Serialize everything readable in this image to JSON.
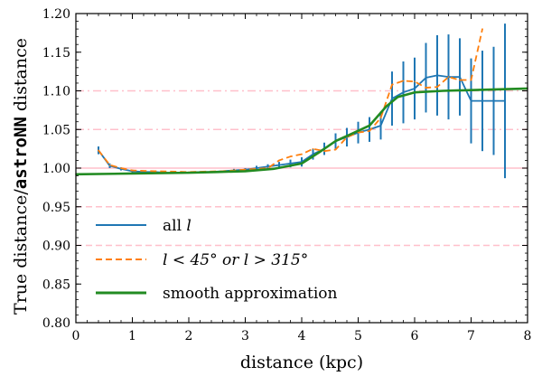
{
  "chart_data": {
    "type": "line",
    "xlabel": "distance (kpc)",
    "ylabel_parts": [
      "True distance/",
      "astroNN",
      " distance"
    ],
    "xlim": [
      0,
      8
    ],
    "ylim": [
      0.8,
      1.2
    ],
    "x_ticks": [
      "0",
      "1",
      "2",
      "3",
      "4",
      "5",
      "6",
      "7",
      "8"
    ],
    "y_ticks": [
      "0.80",
      "0.85",
      "0.90",
      "0.95",
      "1.00",
      "1.05",
      "1.10",
      "1.15",
      "1.20"
    ],
    "reference_lines": [
      {
        "y": 0.9,
        "style": "dashed",
        "color": "#ffc0cb"
      },
      {
        "y": 0.95,
        "style": "dashed",
        "color": "#ffc0cb"
      },
      {
        "y": 1.0,
        "style": "solid",
        "color": "#ffc0cb"
      },
      {
        "y": 1.05,
        "style": "dashdot",
        "color": "#ffc0cb"
      },
      {
        "y": 1.1,
        "style": "dashdot",
        "color": "#ffc0cb"
      }
    ],
    "legend_placement": "lower-left",
    "series": [
      {
        "name": "all l",
        "color": "#1f77b4",
        "style": "solid",
        "x": [
          0.4,
          0.6,
          0.8,
          1.0,
          1.2,
          1.4,
          1.6,
          1.8,
          2.0,
          2.2,
          2.4,
          2.6,
          2.8,
          3.0,
          3.2,
          3.4,
          3.6,
          3.8,
          4.0,
          4.2,
          4.4,
          4.6,
          4.8,
          5.0,
          5.2,
          5.4,
          5.6,
          5.8,
          6.0,
          6.2,
          6.4,
          6.6,
          6.8,
          7.0,
          7.2,
          7.4,
          7.6
        ],
        "y": [
          1.023,
          1.003,
          0.999,
          0.996,
          0.995,
          0.995,
          0.994,
          0.994,
          0.994,
          0.995,
          0.995,
          0.996,
          0.997,
          0.998,
          1.0,
          1.002,
          1.004,
          1.006,
          1.008,
          1.018,
          1.025,
          1.035,
          1.04,
          1.046,
          1.05,
          1.055,
          1.09,
          1.098,
          1.103,
          1.117,
          1.12,
          1.118,
          1.118,
          1.087,
          1.087,
          1.087,
          1.087
        ],
        "err": [
          0.005,
          0.003,
          0.002,
          0.002,
          0.001,
          0.001,
          0.001,
          0.001,
          0.001,
          0.001,
          0.001,
          0.001,
          0.002,
          0.002,
          0.003,
          0.003,
          0.004,
          0.005,
          0.006,
          0.007,
          0.008,
          0.01,
          0.012,
          0.014,
          0.016,
          0.018,
          0.035,
          0.04,
          0.04,
          0.045,
          0.052,
          0.055,
          0.05,
          0.055,
          0.065,
          0.07,
          0.1
        ]
      },
      {
        "name": "l < 45° or l > 315°",
        "color": "#ff7f0e",
        "style": "dashed",
        "x": [
          0.4,
          0.6,
          0.8,
          1.0,
          1.4,
          2.0,
          2.6,
          3.0,
          3.4,
          3.6,
          3.8,
          4.0,
          4.2,
          4.4,
          4.6,
          4.8,
          5.0,
          5.2,
          5.4,
          5.6,
          5.8,
          6.0,
          6.2,
          6.4,
          6.6,
          6.8,
          7.0,
          7.2
        ],
        "y": [
          1.023,
          1.004,
          1.0,
          0.997,
          0.996,
          0.995,
          0.996,
          0.998,
          1.0,
          1.01,
          1.015,
          1.018,
          1.025,
          1.022,
          1.024,
          1.04,
          1.046,
          1.048,
          1.065,
          1.108,
          1.113,
          1.112,
          1.104,
          1.105,
          1.118,
          1.114,
          1.114,
          1.18
        ]
      },
      {
        "name": "smooth approximation",
        "color": "#228B22",
        "style": "solid",
        "x": [
          0.0,
          1.0,
          2.0,
          2.5,
          3.0,
          3.5,
          4.0,
          4.3,
          4.6,
          4.9,
          5.2,
          5.5,
          5.7,
          6.0,
          6.5,
          7.0,
          7.5,
          8.0
        ],
        "y": [
          0.992,
          0.993,
          0.994,
          0.995,
          0.996,
          0.999,
          1.006,
          1.02,
          1.035,
          1.045,
          1.055,
          1.08,
          1.092,
          1.098,
          1.1,
          1.101,
          1.102,
          1.103
        ]
      }
    ],
    "legend": [
      {
        "label_main": "all ",
        "label_italic": "l"
      },
      {
        "label_main": "l < 45° or l > 315°"
      },
      {
        "label_main": "smooth approximation"
      }
    ]
  }
}
